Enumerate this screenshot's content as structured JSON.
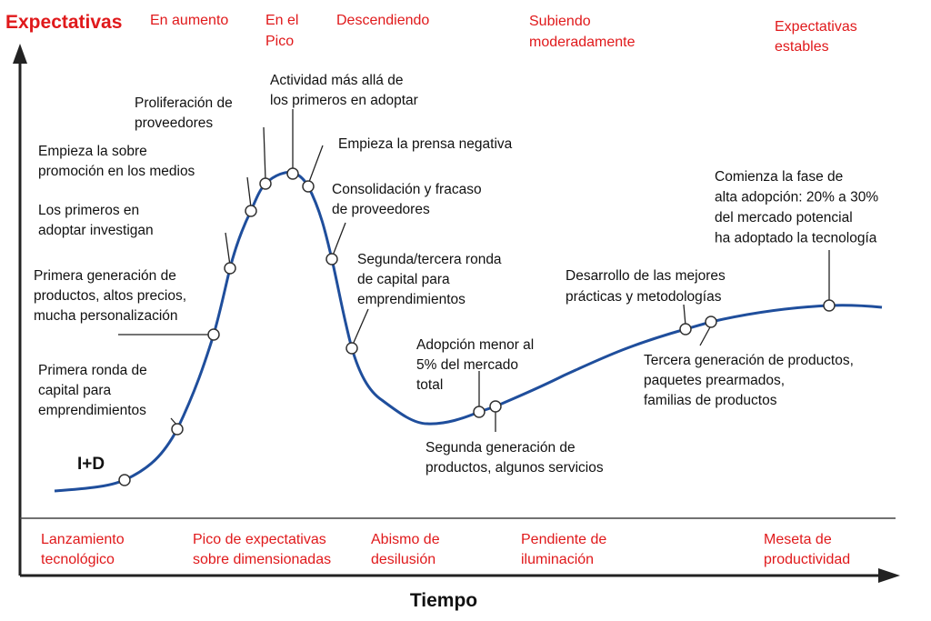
{
  "axes": {
    "y_label": "Expectativas",
    "x_label": "Tiempo"
  },
  "stages": [
    {
      "lines": [
        "En aumento"
      ]
    },
    {
      "lines": [
        "En el",
        "Pico"
      ]
    },
    {
      "lines": [
        "Descendiendo"
      ]
    },
    {
      "lines": [
        "Subiendo",
        "moderadamente"
      ]
    },
    {
      "lines": [
        "Expectativas",
        "estables"
      ]
    }
  ],
  "phases": [
    {
      "lines": [
        "Lanzamiento",
        "tecnológico"
      ]
    },
    {
      "lines": [
        "Pico de expectativas",
        "sobre dimensionadas"
      ]
    },
    {
      "lines": [
        "Abismo de",
        "desilusión"
      ]
    },
    {
      "lines": [
        "Pendiente de",
        "iluminación"
      ]
    },
    {
      "lines": [
        "Meseta de",
        "productividad"
      ]
    }
  ],
  "start_label": "I+D",
  "annotations": [
    {
      "lines": [
        "Primera ronda de",
        "capital para",
        "emprendimientos"
      ]
    },
    {
      "lines": [
        "Primera generación de",
        "productos, altos precios,",
        "mucha personalización"
      ]
    },
    {
      "lines": [
        "Los primeros en",
        "adoptar investigan"
      ]
    },
    {
      "lines": [
        "Empieza la sobre",
        "promoción en los medios"
      ]
    },
    {
      "lines": [
        "Proliferación de",
        "proveedores"
      ]
    },
    {
      "lines": [
        "Actividad más allá de",
        "los primeros en adoptar"
      ]
    },
    {
      "lines": [
        "Empieza la prensa negativa"
      ]
    },
    {
      "lines": [
        "Consolidación y fracaso",
        "de proveedores"
      ]
    },
    {
      "lines": [
        "Segunda/tercera ronda",
        "de capital para",
        "emprendimientos"
      ]
    },
    {
      "lines": [
        "Adopción menor al",
        "5% del mercado",
        "total"
      ]
    },
    {
      "lines": [
        "Segunda generación de",
        "productos, algunos servicios"
      ]
    },
    {
      "lines": [
        "Desarrollo de las mejores",
        "prácticas y metodologías"
      ]
    },
    {
      "lines": [
        "Tercera generación de productos,",
        "paquetes prearmados,",
        "familias de productos"
      ]
    },
    {
      "lines": [
        "Comienza la fase de",
        "alta adopción: 20% a 30%",
        "del mercado potencial",
        "ha adoptado la tecnología"
      ]
    }
  ]
}
